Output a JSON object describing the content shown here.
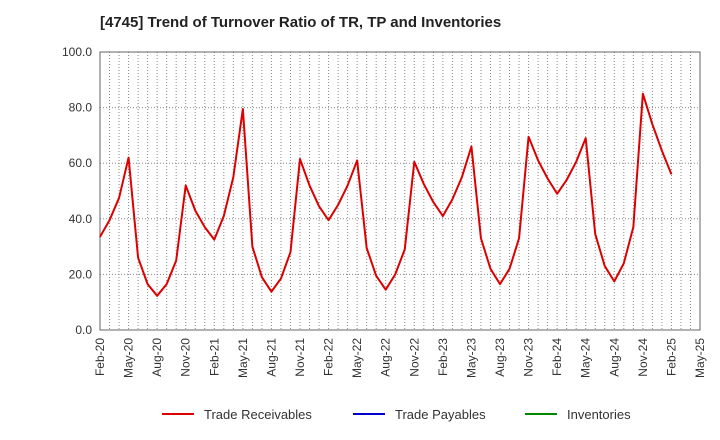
{
  "chart_data": {
    "type": "line",
    "title": "[4745]  Trend of Turnover Ratio of TR, TP and Inventories",
    "xlabel": "",
    "ylabel": "",
    "ylim": [
      0,
      100
    ],
    "yticks": [
      "0.0",
      "20.0",
      "40.0",
      "60.0",
      "80.0",
      "100.0"
    ],
    "xticks": [
      "Feb-20",
      "May-20",
      "Aug-20",
      "Nov-20",
      "Feb-21",
      "May-21",
      "Aug-21",
      "Nov-21",
      "Feb-22",
      "May-22",
      "Aug-22",
      "Nov-22",
      "Feb-23",
      "May-23",
      "Aug-23",
      "Nov-23",
      "Feb-24",
      "May-24",
      "Aug-24",
      "Nov-24",
      "Feb-25",
      "May-25"
    ],
    "x_start": "Feb-20",
    "x_end": "May-25",
    "grid": true,
    "legend_placement": "bottom",
    "series": [
      {
        "name": "Trade Receivables",
        "color": "#dd0000",
        "values": [
          33.5,
          39.5,
          47.5,
          62.0,
          26.0,
          16.5,
          12.3,
          16.5,
          25.0,
          52.0,
          43.0,
          37.0,
          32.5,
          41.0,
          55.0,
          79.5,
          30.0,
          19.0,
          13.8,
          18.5,
          28.0,
          61.5,
          52.0,
          44.5,
          39.5,
          45.0,
          52.0,
          61.0,
          29.5,
          19.5,
          14.5,
          20.0,
          29.0,
          60.5,
          52.5,
          46.0,
          41.0,
          47.0,
          55.0,
          66.0,
          33.0,
          22.0,
          16.5,
          22.0,
          33.0,
          69.5,
          61.0,
          54.5,
          49.0,
          54.0,
          60.5,
          69.0,
          34.5,
          23.0,
          17.5,
          24.0,
          37.0,
          85.0,
          74.0,
          64.5,
          56.0
        ]
      },
      {
        "name": "Trade Payables",
        "color": "#0000cc",
        "values": []
      },
      {
        "name": "Inventories",
        "color": "#008800",
        "values": []
      }
    ]
  }
}
